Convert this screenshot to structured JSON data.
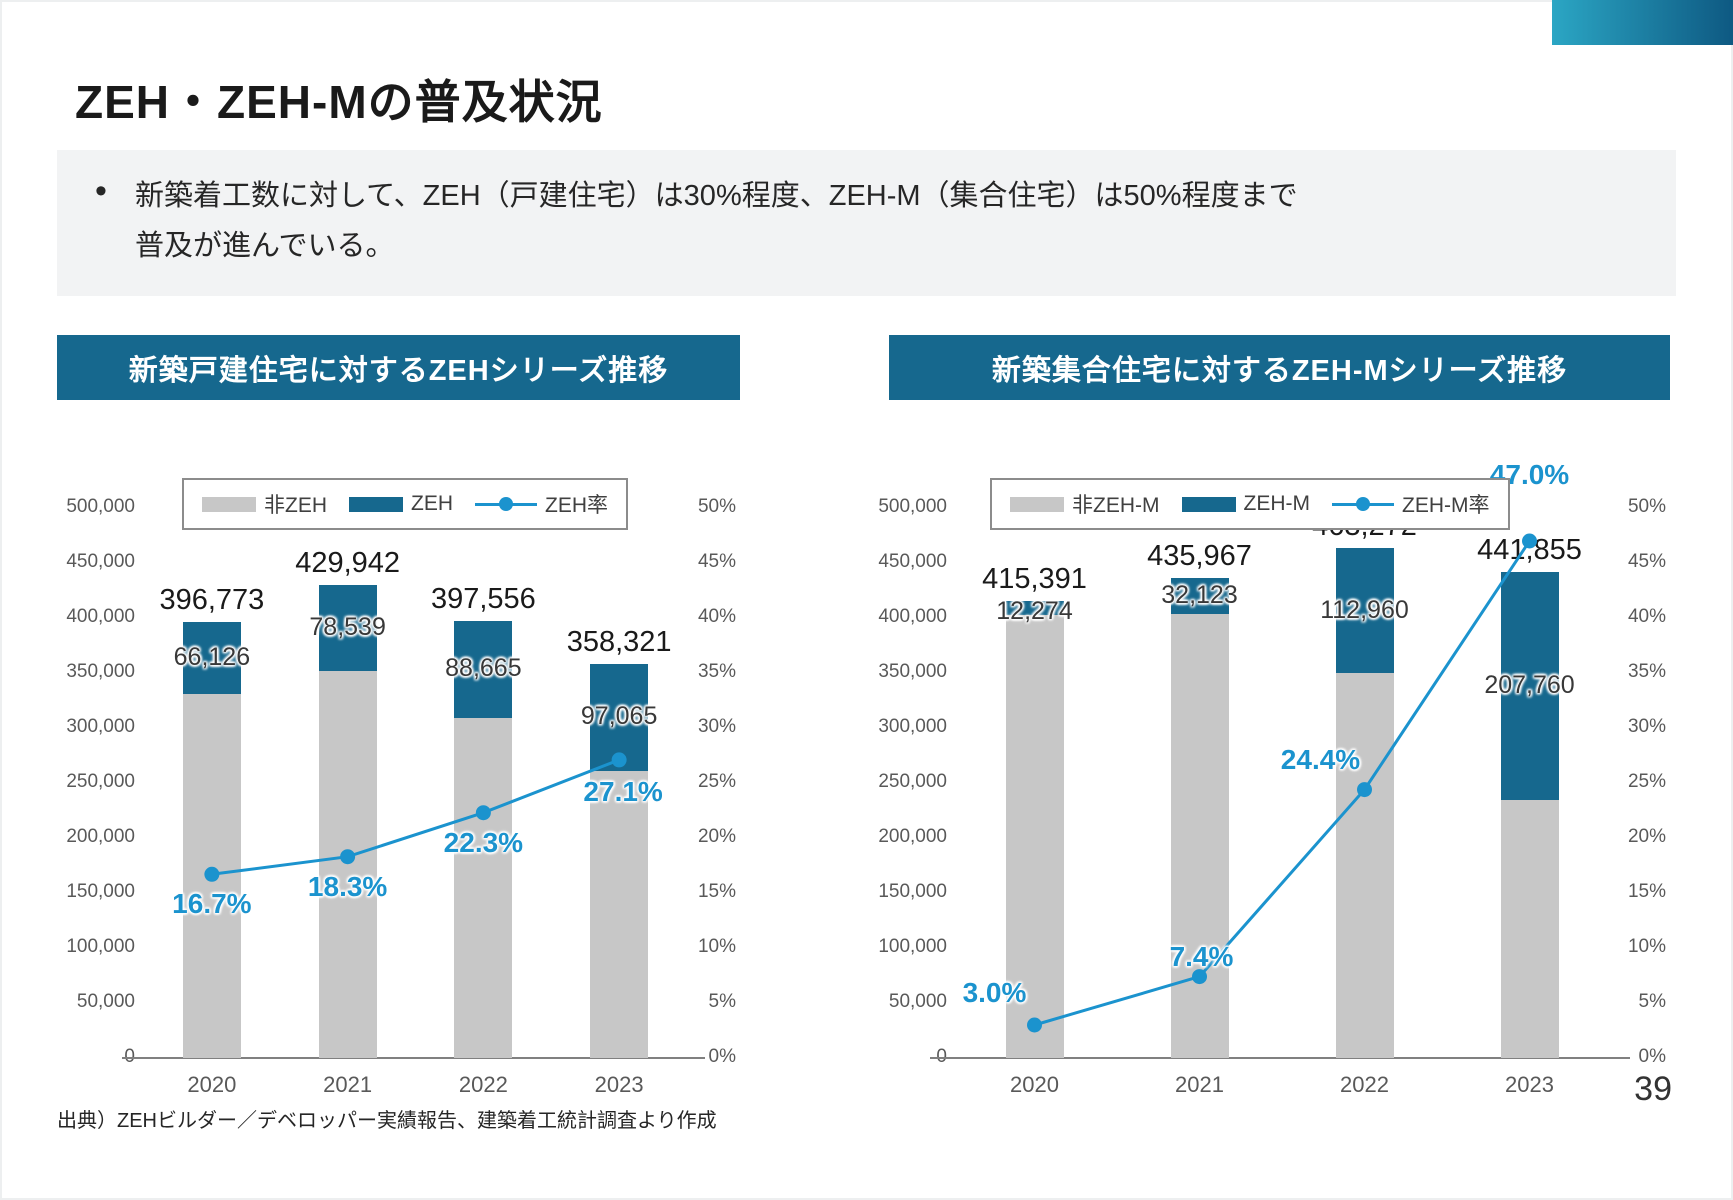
{
  "slide": {
    "title": "ZEH・ZEH-Mの普及状況",
    "summary_bullet": "•",
    "summary_bullet_lines": [
      "新築着工数に対して、ZEH（戸建住宅）は30%程度、ZEH-M（集合住宅）は50%程度まで",
      "普及が進んでいる。"
    ],
    "source_note": "出典）ZEHビルダー／デベロッパー実績報告、建築着工統計調査より作成",
    "page_number": "39"
  },
  "colors": {
    "banner_teal": "#16688E",
    "bar_gray": "#C7C7C7",
    "bar_teal": "#16688E",
    "line_blue": "#1B93CE",
    "accent_gradient_from": "#2BA6C4",
    "accent_gradient_to": "#0E5982"
  },
  "chart_data": [
    {
      "type": "bar",
      "subtype": "stacked-column-with-line-overlay",
      "title": "新築戸建住宅に対するZEHシリーズ推移",
      "categories": [
        "2020",
        "2021",
        "2022",
        "2023"
      ],
      "totals": [
        396773,
        429942,
        397556,
        358321
      ],
      "series": [
        {
          "name": "非ZEH",
          "role": "bar-lower",
          "color": "#C7C7C7"
        },
        {
          "name": "ZEH",
          "role": "bar-upper",
          "color": "#16688E",
          "values": [
            66126,
            78539,
            88665,
            97065
          ]
        },
        {
          "name": "ZEH率",
          "role": "line",
          "axis": "right",
          "color": "#1B93CE",
          "values": [
            16.7,
            18.3,
            22.3,
            27.1
          ]
        }
      ],
      "left_axis": {
        "min": 0,
        "max": 500000,
        "step": 50000
      },
      "right_axis": {
        "min": 0,
        "max": 50,
        "step": 5,
        "unit": "%"
      },
      "legend_position": "top",
      "grid": false
    },
    {
      "type": "bar",
      "subtype": "stacked-column-with-line-overlay",
      "title": "新築集合住宅に対するZEH-Mシリーズ推移",
      "categories": [
        "2020",
        "2021",
        "2022",
        "2023"
      ],
      "totals": [
        415391,
        435967,
        463272,
        441855
      ],
      "series": [
        {
          "name": "非ZEH-M",
          "role": "bar-lower",
          "color": "#C7C7C7"
        },
        {
          "name": "ZEH-M",
          "role": "bar-upper",
          "color": "#16688E",
          "values": [
            12274,
            32123,
            112960,
            207760
          ]
        },
        {
          "name": "ZEH-M率",
          "role": "line",
          "axis": "right",
          "color": "#1B93CE",
          "values": [
            3.0,
            7.4,
            24.4,
            47.0
          ]
        }
      ],
      "left_axis": {
        "min": 0,
        "max": 500000,
        "step": 50000
      },
      "right_axis": {
        "min": 0,
        "max": 50,
        "step": 5,
        "unit": "%"
      },
      "legend_position": "top",
      "grid": false
    }
  ]
}
